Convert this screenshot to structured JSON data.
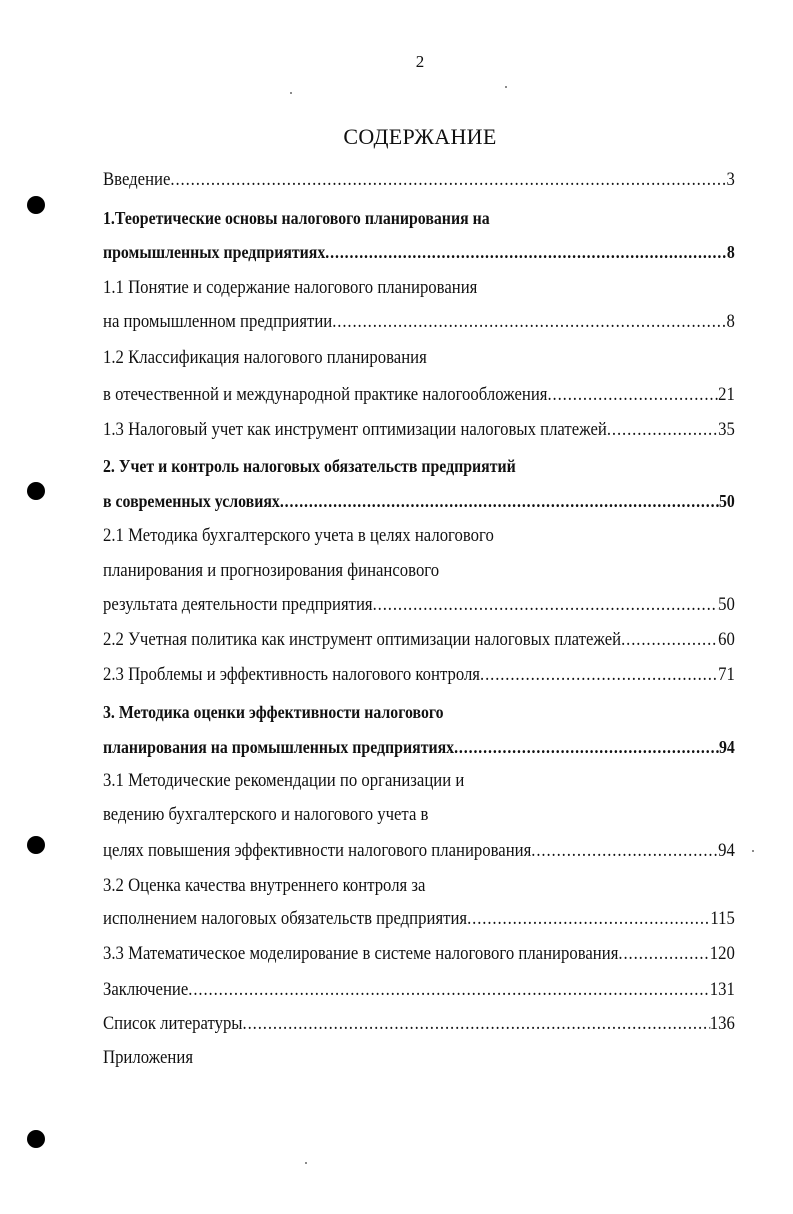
{
  "page_number": "2",
  "title": "СОДЕРЖАНИЕ",
  "toc": [
    {
      "text": "Введение",
      "page": "3",
      "bold": false
    },
    {
      "text": "1.Теоретические основы налогового планирования на",
      "page": "",
      "bold": true
    },
    {
      "text": "промышленных предприятиях",
      "page": "8",
      "bold": true
    },
    {
      "text": "1.1 Понятие и содержание налогового планирования",
      "page": "",
      "bold": false
    },
    {
      "text": "на промышленном предприятии",
      "page": "8",
      "bold": false
    },
    {
      "text": "1.2 Классификация налогового планирования",
      "page": "",
      "bold": false
    },
    {
      "text": "в отечественной и международной практике налогообложения",
      "page": "21",
      "bold": false
    },
    {
      "text": "1.3 Налоговый учет как инструмент оптимизации налоговых платежей",
      "page": "35",
      "bold": false
    },
    {
      "text": "2. Учет и контроль налоговых обязательств предприятий",
      "page": "",
      "bold": true
    },
    {
      "text": "в современных условиях",
      "page": "50",
      "bold": true
    },
    {
      "text": "2.1 Методика бухгалтерского учета в целях налогового",
      "page": "",
      "bold": false
    },
    {
      "text": "планирования и прогнозирования финансового",
      "page": "",
      "bold": false
    },
    {
      "text": "результата деятельности предприятия",
      "page": "50",
      "bold": false
    },
    {
      "text": "2.2 Учетная политика как инструмент оптимизации налоговых платежей",
      "page": "60",
      "bold": false
    },
    {
      "text": "2.3 Проблемы и эффективность налогового контроля",
      "page": "71",
      "bold": false
    },
    {
      "text": "3. Методика оценки эффективности налогового",
      "page": "",
      "bold": true
    },
    {
      "text": "планирования на промышленных предприятиях",
      "page": "94",
      "bold": true
    },
    {
      "text": "3.1  Методические рекомендации  по организации и",
      "page": "",
      "bold": false
    },
    {
      "text": "ведению бухгалтерского и налогового учета в",
      "page": "",
      "bold": false
    },
    {
      "text": "целях повышения эффективности налогового планирования",
      "page": "94",
      "bold": false
    },
    {
      "text": "3.2 Оценка качества внутреннего контроля за",
      "page": "",
      "bold": false
    },
    {
      "text": "исполнением налоговых обязательств предприятия",
      "page": "115",
      "bold": false
    },
    {
      "text": "3.3 Математическое моделирование в системе налогового планирования",
      "page": "120",
      "bold": false
    },
    {
      "text": "Заключение",
      "page": "131",
      "bold": false
    },
    {
      "text": "Список литературы",
      "page": "136",
      "bold": false
    },
    {
      "text": "Приложения",
      "page": "",
      "bold": false
    }
  ]
}
